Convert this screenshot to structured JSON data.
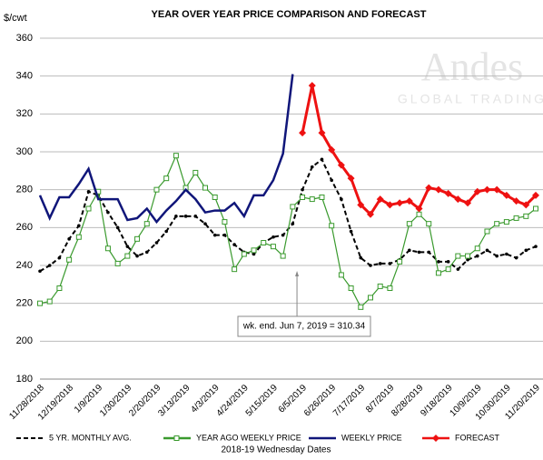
{
  "chart_data": {
    "type": "line",
    "title": "YEAR OVER YEAR PRICE COMPARISON AND FORECAST",
    "y_unit_label": "$/cwt",
    "x_axis_label": "2018-19 Wednesday Dates",
    "watermark": "Andes",
    "watermark_sub": "GLOBAL TRADING",
    "annotation": "wk. end. Jun 7, 2019  = 310.34",
    "ylim": [
      180,
      360
    ],
    "yticks": [
      180,
      200,
      220,
      240,
      260,
      280,
      300,
      320,
      340,
      360
    ],
    "grid": true,
    "categories": [
      "11/28/2018",
      null,
      null,
      "12/19/2018",
      null,
      null,
      "1/9/2019",
      null,
      null,
      "1/30/2019",
      null,
      null,
      "2/20/2019",
      null,
      null,
      "3/13/2019",
      null,
      null,
      "4/3/2019",
      null,
      null,
      "4/24/2019",
      null,
      null,
      "5/15/2019",
      null,
      null,
      "6/5/2019",
      null,
      null,
      "6/26/2019",
      null,
      null,
      "7/17/2019",
      null,
      null,
      "8/7/2019",
      null,
      null,
      "8/28/2019",
      null,
      null,
      "9/18/2019",
      null,
      null,
      "10/9/2019",
      null,
      null,
      "10/30/2019",
      null,
      null,
      "11/20/2019"
    ],
    "series": [
      {
        "name": "5 YR. MONTHLY AVG.",
        "color": "#000000",
        "style": "dashed",
        "marker": "circle",
        "values": [
          237,
          240,
          244,
          254,
          261,
          279,
          277,
          268,
          260,
          250,
          245,
          247,
          252,
          258,
          266,
          266,
          266,
          262,
          256,
          256,
          251,
          247,
          246,
          252,
          255,
          256,
          262,
          280,
          292,
          296,
          285,
          275,
          258,
          244,
          240,
          241,
          241,
          243,
          248,
          247,
          247,
          242,
          242,
          238,
          243,
          245,
          248,
          245,
          246,
          244,
          248,
          250
        ]
      },
      {
        "name": "YEAR AGO WEEKLY PRICE",
        "color": "#3a9a2e",
        "style": "solid",
        "marker": "square",
        "values": [
          220,
          221,
          228,
          243,
          255,
          270,
          279,
          249,
          241,
          245,
          254,
          262,
          280,
          286,
          298,
          281,
          289,
          281,
          276,
          263,
          238,
          246,
          248,
          252,
          250,
          245,
          271,
          276,
          275,
          276,
          261,
          235,
          228,
          218,
          223,
          229,
          228,
          242,
          262,
          267,
          262,
          236,
          238,
          245,
          245,
          249,
          258,
          262,
          263,
          265,
          266,
          270
        ]
      },
      {
        "name": "WEEKLY PRICE",
        "color": "#10167a",
        "style": "solid",
        "marker": "none",
        "values": [
          277,
          265,
          276,
          276,
          283,
          291,
          275,
          275,
          275,
          264,
          265,
          270,
          263,
          269,
          274,
          280,
          275,
          268,
          269,
          269,
          273,
          266,
          277,
          277,
          285,
          299,
          341,
          null,
          null,
          null,
          null,
          null,
          null,
          null,
          null,
          null,
          null,
          null,
          null,
          null,
          null,
          null,
          null,
          null,
          null,
          null,
          null,
          null,
          null,
          null,
          null,
          null
        ]
      },
      {
        "name": "FORECAST",
        "color": "#ee1111",
        "style": "solid",
        "marker": "diamond",
        "values": [
          null,
          null,
          null,
          null,
          null,
          null,
          null,
          null,
          null,
          null,
          null,
          null,
          null,
          null,
          null,
          null,
          null,
          null,
          null,
          null,
          null,
          null,
          null,
          null,
          null,
          null,
          null,
          310,
          335,
          310,
          301,
          293,
          286,
          272,
          267,
          275,
          272,
          273,
          274,
          270,
          281,
          280,
          278,
          275,
          273,
          279,
          280,
          280,
          277,
          274,
          272,
          277
        ]
      }
    ]
  }
}
